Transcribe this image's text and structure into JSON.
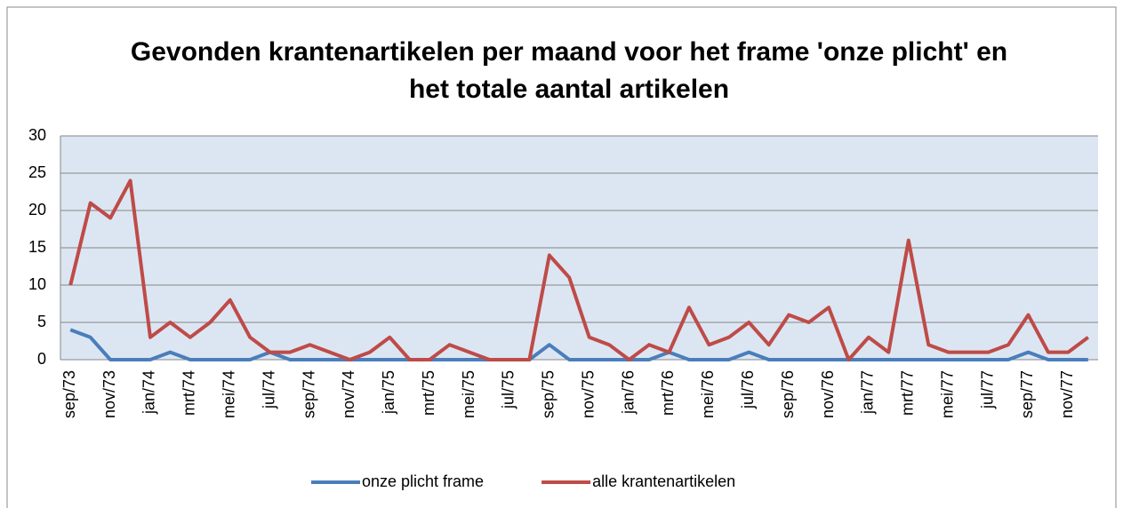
{
  "chart_data": {
    "type": "line",
    "title": "Gevonden krantenartikelen per maand voor het frame 'onze plicht' en het totale aantal artikelen",
    "categories": [
      "sep/73",
      null,
      "nov/73",
      null,
      "jan/74",
      null,
      "mrt/74",
      null,
      "mei/74",
      null,
      "jul/74",
      null,
      "sep/74",
      null,
      "nov/74",
      null,
      "jan/75",
      null,
      "mrt/75",
      null,
      "mei/75",
      null,
      "jul/75",
      null,
      "sep/75",
      null,
      "nov/75",
      null,
      "jan/76",
      null,
      "mrt/76",
      null,
      "mei/76",
      null,
      "jul/76",
      null,
      "sep/76",
      null,
      "nov/76",
      null,
      "jan/77",
      null,
      "mrt/77",
      null,
      "mei/77",
      null,
      "jul/77",
      null,
      "sep/77",
      null,
      "nov/77",
      null
    ],
    "series": [
      {
        "name": "onze plicht frame",
        "color": "#4a7ebb",
        "values": [
          4,
          3,
          0,
          0,
          0,
          1,
          0,
          0,
          0,
          0,
          1,
          0,
          0,
          0,
          0,
          0,
          0,
          0,
          0,
          0,
          0,
          0,
          0,
          0,
          2,
          0,
          0,
          0,
          0,
          0,
          1,
          0,
          0,
          0,
          1,
          0,
          0,
          0,
          0,
          0,
          0,
          0,
          0,
          0,
          0,
          0,
          0,
          0,
          1,
          0,
          0,
          0
        ]
      },
      {
        "name": "alle krantenartikelen",
        "color": "#be4b48",
        "values": [
          10,
          21,
          19,
          24,
          3,
          5,
          3,
          5,
          8,
          3,
          1,
          1,
          2,
          1,
          0,
          1,
          3,
          0,
          0,
          2,
          1,
          0,
          0,
          0,
          14,
          11,
          3,
          2,
          0,
          2,
          1,
          7,
          2,
          3,
          5,
          2,
          6,
          5,
          7,
          0,
          3,
          1,
          16,
          2,
          1,
          1,
          1,
          2,
          6,
          1,
          1,
          3
        ]
      }
    ],
    "ylim": [
      0,
      30
    ],
    "yticks": [
      0,
      5,
      10,
      15,
      20,
      25,
      30
    ],
    "grid": true,
    "legend": "bottom"
  }
}
